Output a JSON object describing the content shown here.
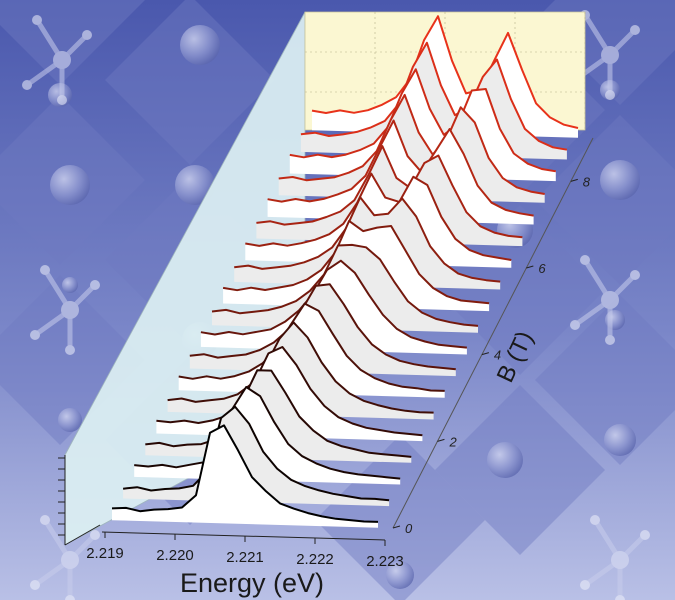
{
  "colors": {
    "background": "#5a67b5",
    "background_light": "#b0b8e2",
    "back_wall": "#fbf7d2",
    "side_wall": "#dceff2",
    "low_field_line": "#000000",
    "high_field_line": "#e8321a"
  },
  "chart_data": {
    "type": "line",
    "style": "3d-waterfall",
    "xlabel": "Energy (eV)",
    "ylabel": "B (T)",
    "xlim": [
      2.219,
      2.223
    ],
    "ylim": [
      0,
      9
    ],
    "x_ticks": [
      "2.219",
      "2.220",
      "2.221",
      "2.222",
      "2.223"
    ],
    "y_ticks": [
      "0",
      "2",
      "4",
      "6",
      "8"
    ],
    "x": [
      2.2191,
      2.2193,
      2.2195,
      2.2197,
      2.2199,
      2.2201,
      2.2203,
      2.2205,
      2.2207,
      2.2209,
      2.2211,
      2.2213,
      2.2215,
      2.2217,
      2.2219,
      2.2221,
      2.2223,
      2.2225,
      2.2227,
      2.2229
    ],
    "series": [
      {
        "b": 0.0,
        "values": [
          0.12,
          0.13,
          0.1,
          0.12,
          0.13,
          0.15,
          0.28,
          0.92,
          1.0,
          0.75,
          0.48,
          0.34,
          0.22,
          0.17,
          0.13,
          0.1,
          0.08,
          0.07,
          0.06,
          0.06
        ]
      },
      {
        "b": 0.5,
        "values": [
          0.1,
          0.12,
          0.09,
          0.11,
          0.12,
          0.15,
          0.3,
          0.85,
          0.97,
          0.8,
          0.52,
          0.35,
          0.24,
          0.18,
          0.14,
          0.11,
          0.09,
          0.07,
          0.07,
          0.06
        ]
      },
      {
        "b": 1.0,
        "values": [
          0.12,
          0.11,
          0.13,
          0.11,
          0.14,
          0.17,
          0.3,
          0.72,
          0.95,
          0.86,
          0.6,
          0.38,
          0.26,
          0.19,
          0.14,
          0.11,
          0.09,
          0.08,
          0.07,
          0.06
        ]
      },
      {
        "b": 1.5,
        "values": [
          0.11,
          0.13,
          0.1,
          0.12,
          0.13,
          0.18,
          0.3,
          0.6,
          0.9,
          0.9,
          0.68,
          0.44,
          0.3,
          0.2,
          0.15,
          0.12,
          0.09,
          0.08,
          0.07,
          0.06
        ]
      },
      {
        "b": 2.0,
        "values": [
          0.13,
          0.12,
          0.14,
          0.12,
          0.15,
          0.2,
          0.32,
          0.55,
          0.85,
          0.92,
          0.74,
          0.5,
          0.33,
          0.22,
          0.16,
          0.12,
          0.1,
          0.08,
          0.07,
          0.06
        ]
      },
      {
        "b": 2.5,
        "values": [
          0.12,
          0.14,
          0.11,
          0.13,
          0.15,
          0.2,
          0.31,
          0.5,
          0.78,
          0.95,
          0.8,
          0.55,
          0.36,
          0.24,
          0.17,
          0.13,
          0.1,
          0.08,
          0.07,
          0.07
        ]
      },
      {
        "b": 3.0,
        "values": [
          0.14,
          0.12,
          0.15,
          0.13,
          0.16,
          0.21,
          0.3,
          0.45,
          0.7,
          0.92,
          0.85,
          0.62,
          0.4,
          0.26,
          0.18,
          0.13,
          0.1,
          0.09,
          0.07,
          0.07
        ]
      },
      {
        "b": 3.5,
        "values": [
          0.13,
          0.15,
          0.12,
          0.14,
          0.16,
          0.21,
          0.29,
          0.42,
          0.63,
          0.88,
          0.9,
          0.7,
          0.47,
          0.3,
          0.2,
          0.14,
          0.11,
          0.09,
          0.08,
          0.07
        ]
      },
      {
        "b": 4.0,
        "values": [
          0.15,
          0.13,
          0.16,
          0.14,
          0.17,
          0.2,
          0.28,
          0.4,
          0.57,
          0.82,
          0.92,
          0.8,
          0.58,
          0.38,
          0.24,
          0.16,
          0.12,
          0.09,
          0.08,
          0.07
        ]
      },
      {
        "b": 4.5,
        "values": [
          0.14,
          0.16,
          0.13,
          0.15,
          0.17,
          0.21,
          0.27,
          0.38,
          0.55,
          0.85,
          0.86,
          0.84,
          0.72,
          0.5,
          0.3,
          0.19,
          0.13,
          0.1,
          0.08,
          0.07
        ]
      },
      {
        "b": 5.0,
        "values": [
          0.16,
          0.14,
          0.17,
          0.15,
          0.18,
          0.21,
          0.27,
          0.37,
          0.55,
          0.88,
          0.78,
          0.82,
          0.84,
          0.6,
          0.36,
          0.22,
          0.14,
          0.1,
          0.09,
          0.08
        ]
      },
      {
        "b": 5.5,
        "values": [
          0.15,
          0.17,
          0.14,
          0.16,
          0.18,
          0.22,
          0.28,
          0.38,
          0.58,
          0.9,
          0.72,
          0.74,
          0.9,
          0.72,
          0.42,
          0.25,
          0.15,
          0.11,
          0.09,
          0.08
        ]
      },
      {
        "b": 6.0,
        "values": [
          0.17,
          0.15,
          0.18,
          0.16,
          0.19,
          0.23,
          0.29,
          0.4,
          0.62,
          0.92,
          0.68,
          0.64,
          0.9,
          0.82,
          0.5,
          0.28,
          0.17,
          0.12,
          0.1,
          0.08
        ]
      },
      {
        "b": 6.5,
        "values": [
          0.16,
          0.18,
          0.15,
          0.17,
          0.19,
          0.24,
          0.3,
          0.42,
          0.68,
          0.98,
          0.66,
          0.56,
          0.82,
          0.9,
          0.6,
          0.33,
          0.19,
          0.13,
          0.1,
          0.09
        ]
      },
      {
        "b": 7.0,
        "values": [
          0.18,
          0.16,
          0.19,
          0.17,
          0.2,
          0.25,
          0.31,
          0.45,
          0.74,
          1.02,
          0.66,
          0.5,
          0.72,
          0.95,
          0.7,
          0.38,
          0.21,
          0.14,
          0.11,
          0.09
        ]
      },
      {
        "b": 7.5,
        "values": [
          0.17,
          0.19,
          0.16,
          0.18,
          0.2,
          0.25,
          0.32,
          0.48,
          0.8,
          1.06,
          0.68,
          0.46,
          0.62,
          0.95,
          0.8,
          0.44,
          0.24,
          0.15,
          0.11,
          0.09
        ]
      },
      {
        "b": 8.0,
        "values": [
          0.19,
          0.17,
          0.2,
          0.18,
          0.21,
          0.26,
          0.33,
          0.5,
          0.85,
          1.1,
          0.7,
          0.44,
          0.55,
          0.9,
          0.92,
          0.52,
          0.27,
          0.17,
          0.12,
          0.1
        ]
      },
      {
        "b": 8.5,
        "values": [
          0.18,
          0.2,
          0.17,
          0.19,
          0.22,
          0.27,
          0.34,
          0.52,
          0.9,
          1.15,
          0.72,
          0.42,
          0.5,
          0.82,
          1.0,
          0.6,
          0.3,
          0.18,
          0.12,
          0.1
        ]
      },
      {
        "b": 9.0,
        "values": [
          0.2,
          0.18,
          0.21,
          0.19,
          0.22,
          0.28,
          0.36,
          0.55,
          0.95,
          1.2,
          0.75,
          0.42,
          0.46,
          0.76,
          1.05,
          0.68,
          0.34,
          0.2,
          0.13,
          0.1
        ]
      }
    ]
  }
}
